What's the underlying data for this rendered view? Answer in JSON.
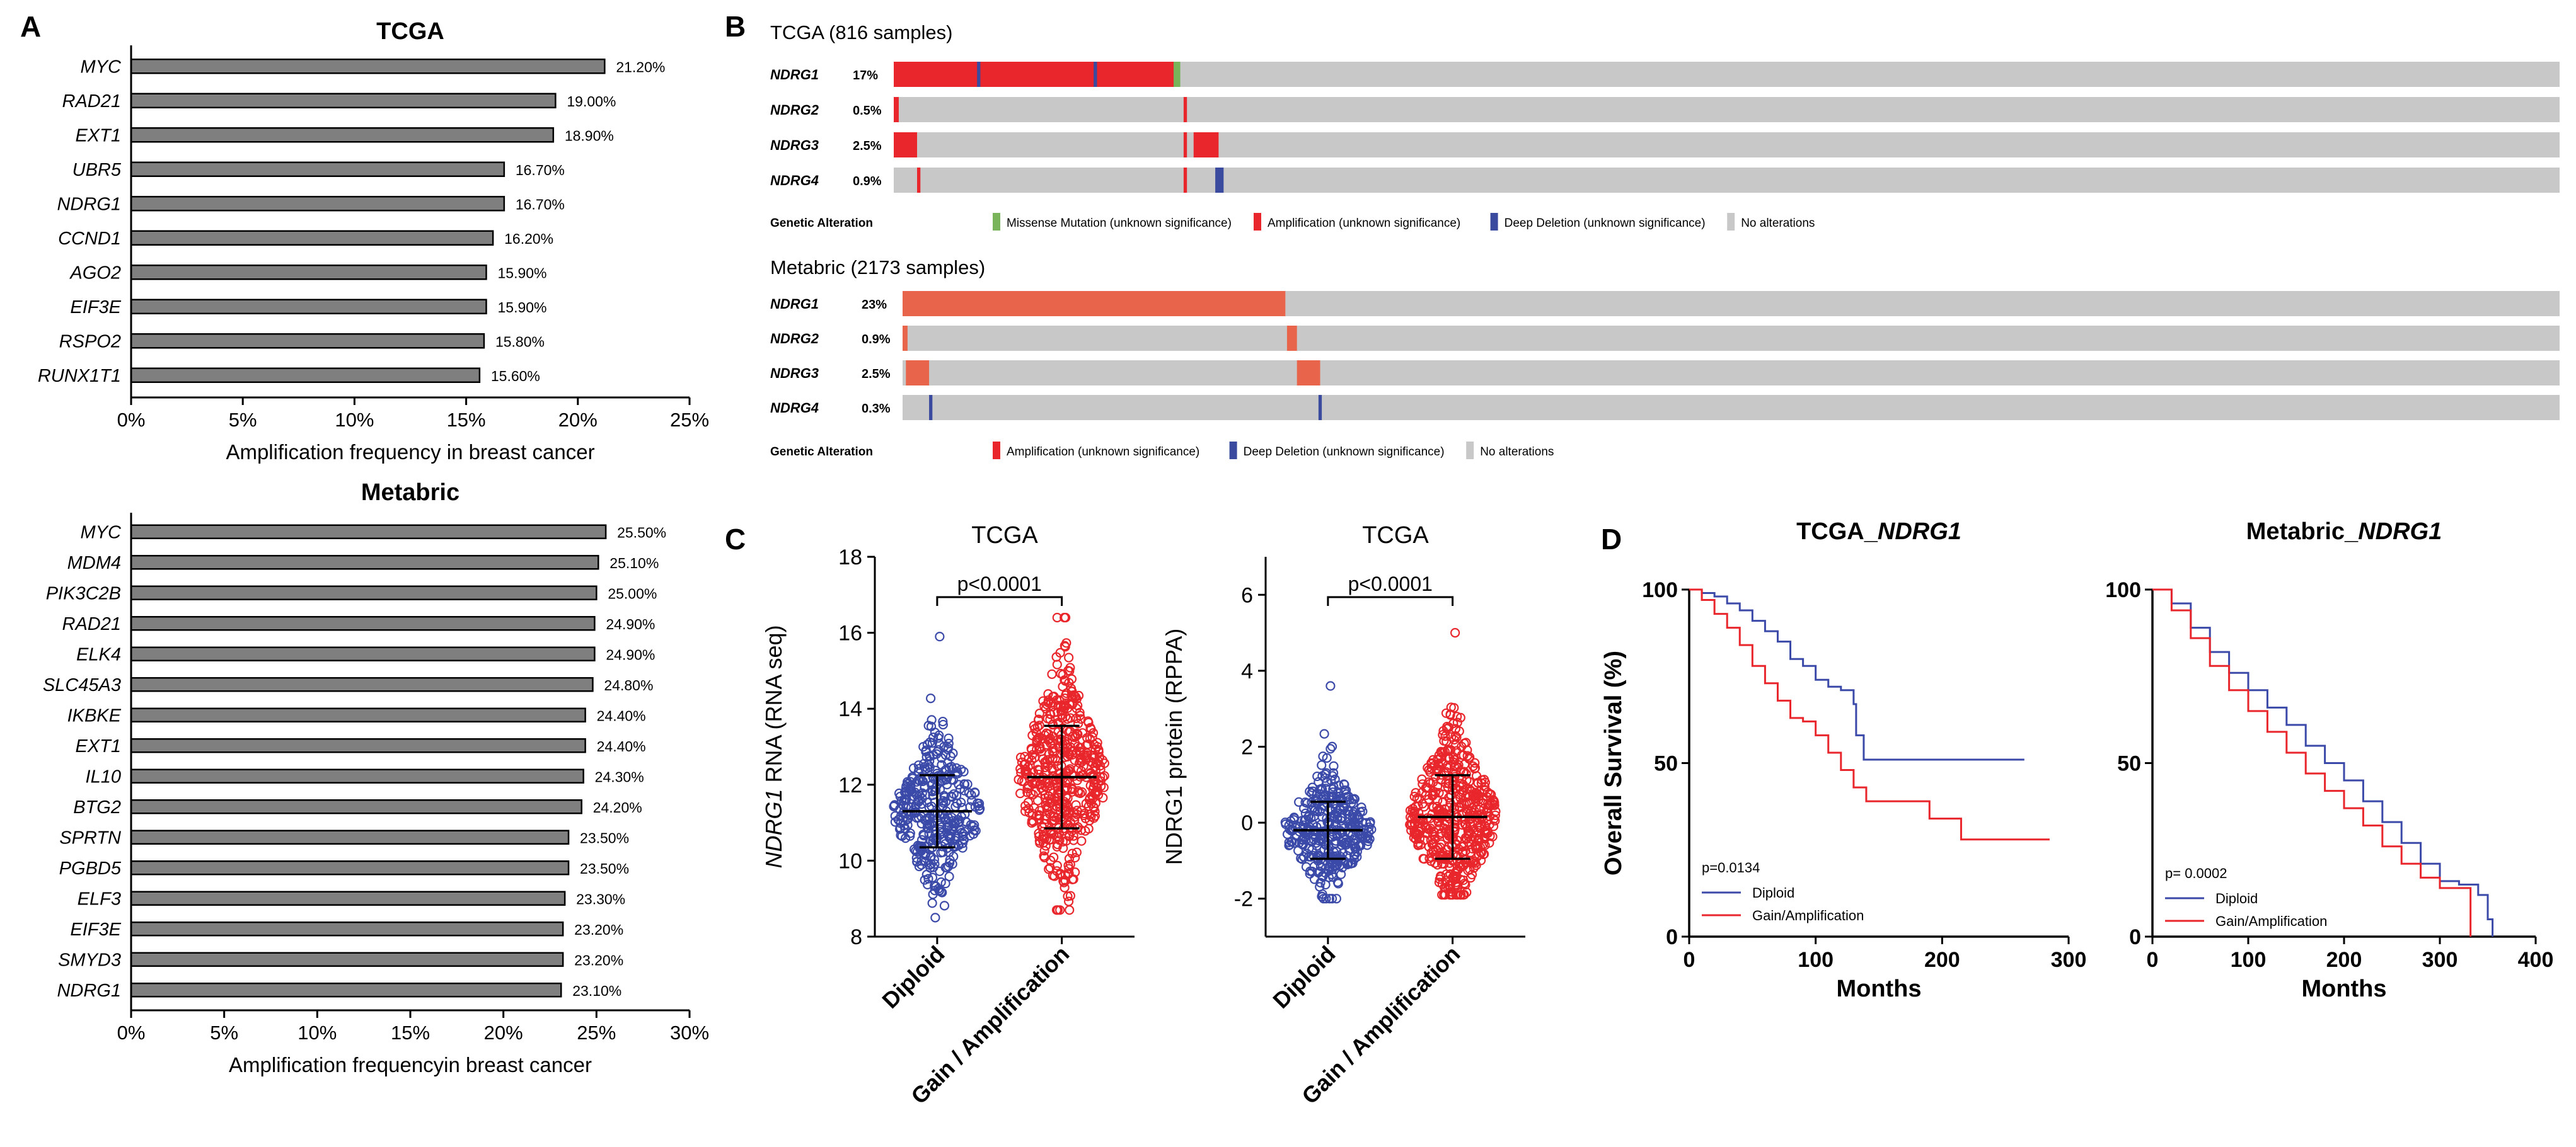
{
  "panel_letters": [
    "A",
    "B",
    "C",
    "D"
  ],
  "colors": {
    "bar": "#7f7f7f",
    "amp": "#e8262b",
    "amp_light": "#e8644a",
    "del": "#3a4a9e",
    "mis": "#79b45a",
    "noalt": "#c8c8c8",
    "dip": "#3b4aa8",
    "gain": "#e8262b"
  },
  "chart_data": [
    {
      "id": "a_tcga",
      "type": "bar",
      "orientation": "horizontal",
      "title": "TCGA",
      "categories": [
        "MYC",
        "RAD21",
        "EXT1",
        "UBR5",
        "NDRG1",
        "CCND1",
        "AGO2",
        "EIF3E",
        "RSPO2",
        "RUNX1T1"
      ],
      "values": [
        21.2,
        19.0,
        18.9,
        16.7,
        16.7,
        16.2,
        15.9,
        15.9,
        15.8,
        15.6
      ],
      "value_labels": [
        "21.20%",
        "19.00%",
        "18.90%",
        "16.70%",
        "16.70%",
        "16.20%",
        "15.90%",
        "15.90%",
        "15.80%",
        "15.60%"
      ],
      "xlim": [
        0,
        25
      ],
      "ticks": [
        "0%",
        "5%",
        "10%",
        "15%",
        "20%",
        "25%"
      ],
      "xlabel": "Amplification frequency in breast cancer"
    },
    {
      "id": "a_metabric",
      "type": "bar",
      "orientation": "horizontal",
      "title": "Metabric",
      "categories": [
        "MYC",
        "MDM4",
        "PIK3C2B",
        "RAD21",
        "ELK4",
        "SLC45A3",
        "IKBKE",
        "EXT1",
        "IL10",
        "BTG2",
        "SPRTN",
        "PGBD5",
        "ELF3",
        "EIF3E",
        "SMYD3",
        "NDRG1"
      ],
      "values": [
        25.5,
        25.1,
        25.0,
        24.9,
        24.9,
        24.8,
        24.4,
        24.4,
        24.3,
        24.2,
        23.5,
        23.5,
        23.3,
        23.2,
        23.2,
        23.1
      ],
      "value_labels": [
        "25.50%",
        "25.10%",
        "25.00%",
        "24.90%",
        "24.90%",
        "24.80%",
        "24.40%",
        "24.40%",
        "24.30%",
        "24.20%",
        "23.50%",
        "23.50%",
        "23.30%",
        "23.20%",
        "23.20%",
        "23.10%"
      ],
      "xlim": [
        0,
        30
      ],
      "ticks": [
        "0%",
        "5%",
        "10%",
        "15%",
        "20%",
        "25%",
        "30%"
      ],
      "xlabel": "Amplification frequencyin breast cancer"
    },
    {
      "id": "b_tcga",
      "type": "oncoprint",
      "title": "TCGA (816 samples)",
      "genes": [
        {
          "name": "NDRG1",
          "pct": "17%",
          "segments": [
            [
              0,
              0.17,
              "amp"
            ],
            [
              0.168,
              0.172,
              "mis"
            ],
            [
              0.05,
              0.052,
              "del"
            ],
            [
              0.12,
              0.122,
              "del"
            ]
          ]
        },
        {
          "name": "NDRG2",
          "pct": "0.5%",
          "segments": [
            [
              0,
              0.003,
              "amp"
            ],
            [
              0.174,
              0.176,
              "amp"
            ]
          ]
        },
        {
          "name": "NDRG3",
          "pct": "2.5%",
          "segments": [
            [
              0,
              0.014,
              "amp"
            ],
            [
              0.174,
              0.176,
              "amp"
            ],
            [
              0.18,
              0.195,
              "amp"
            ]
          ]
        },
        {
          "name": "NDRG4",
          "pct": "0.9%",
          "segments": [
            [
              0.014,
              0.016,
              "amp"
            ],
            [
              0.174,
              0.176,
              "amp"
            ],
            [
              0.193,
              0.198,
              "del"
            ]
          ]
        }
      ],
      "legend_title": "Genetic Alteration",
      "legend": [
        {
          "key": "mis",
          "label": "Missense Mutation (unknown significance)"
        },
        {
          "key": "amp",
          "label": "Amplification (unknown significance)"
        },
        {
          "key": "del",
          "label": "Deep Deletion (unknown significance)"
        },
        {
          "key": "noalt",
          "label": "No alterations"
        }
      ]
    },
    {
      "id": "b_metabric",
      "type": "oncoprint",
      "title": "Metabric (2173 samples)",
      "genes": [
        {
          "name": "NDRG1",
          "pct": "23%",
          "segments": [
            [
              0,
              0.231,
              "amp_light"
            ]
          ]
        },
        {
          "name": "NDRG2",
          "pct": "0.9%",
          "segments": [
            [
              0,
              0.003,
              "amp_light"
            ],
            [
              0.232,
              0.238,
              "amp_light"
            ]
          ]
        },
        {
          "name": "NDRG3",
          "pct": "2.5%",
          "segments": [
            [
              0.002,
              0.016,
              "amp_light"
            ],
            [
              0.238,
              0.252,
              "amp_light"
            ]
          ]
        },
        {
          "name": "NDRG4",
          "pct": "0.3%",
          "segments": [
            [
              0.016,
              0.018,
              "del"
            ],
            [
              0.251,
              0.253,
              "del"
            ]
          ]
        }
      ],
      "legend_title": "Genetic Alteration",
      "legend": [
        {
          "key": "amp",
          "label": "Amplification (unknown significance)"
        },
        {
          "key": "del",
          "label": "Deep Deletion (unknown significance)"
        },
        {
          "key": "noalt",
          "label": "No alterations"
        }
      ]
    },
    {
      "id": "c_rna",
      "type": "scatter",
      "subtype": "dot_plot",
      "title": "TCGA",
      "categories": [
        "Diploid",
        "Gain / Amplification"
      ],
      "ylabel_italic": "NDRG1",
      "ylabel_rest": " RNA (RNA seq)",
      "ylim": [
        8,
        18
      ],
      "yticks": [
        8,
        10,
        12,
        14,
        16,
        18
      ],
      "groups": [
        {
          "name": "Diploid",
          "mean": 11.3,
          "sd": 0.95,
          "min": 8.5,
          "max": 15.9,
          "n": 360,
          "color": "dip"
        },
        {
          "name": "Gain / Amplification",
          "mean": 12.2,
          "sd": 1.35,
          "min": 8.7,
          "max": 16.4,
          "n": 520,
          "color": "gain"
        }
      ],
      "pvalue": "p<0.0001"
    },
    {
      "id": "c_rppa",
      "type": "scatter",
      "subtype": "dot_plot",
      "title": "TCGA",
      "categories": [
        "Diploid",
        "Gain / Amplification"
      ],
      "ylabel_italic": "",
      "ylabel_rest": "NDRG1 protein (RPPA)",
      "ylim": [
        -3,
        7
      ],
      "yticks": [
        -2,
        0,
        2,
        4,
        6
      ],
      "groups": [
        {
          "name": "Diploid",
          "mean": -0.2,
          "sd": 0.75,
          "min": -2.0,
          "max": 3.6,
          "n": 360,
          "color": "dip"
        },
        {
          "name": "Gain / Amplification",
          "mean": 0.15,
          "sd": 1.1,
          "min": -1.9,
          "max": 5.0,
          "n": 520,
          "color": "gain"
        }
      ],
      "pvalue": "p<0.0001"
    },
    {
      "id": "d_tcga",
      "type": "line",
      "subtype": "kaplan_meier",
      "title_prefix": "TCGA_",
      "title_italic": "NDRG1",
      "xlabel": "Months",
      "ylabel": "Overall Survival (%)",
      "xlim": [
        0,
        300
      ],
      "xticks": [
        0,
        100,
        200,
        300
      ],
      "ylim": [
        0,
        100
      ],
      "yticks": [
        0,
        50,
        100
      ],
      "pvalue": "p=0.0134",
      "series": [
        {
          "name": "Diploid",
          "color": "dip",
          "points": [
            [
              0,
              100
            ],
            [
              10,
              99
            ],
            [
              20,
              98
            ],
            [
              30,
              96
            ],
            [
              40,
              94
            ],
            [
              50,
              91
            ],
            [
              60,
              88
            ],
            [
              70,
              85
            ],
            [
              80,
              80
            ],
            [
              90,
              78
            ],
            [
              100,
              74
            ],
            [
              110,
              72
            ],
            [
              120,
              71
            ],
            [
              130,
              67
            ],
            [
              132,
              58
            ],
            [
              138,
              51
            ],
            [
              265,
              51
            ]
          ]
        },
        {
          "name": "Gain/Amplification",
          "color": "gain",
          "points": [
            [
              0,
              100
            ],
            [
              10,
              97
            ],
            [
              20,
              93
            ],
            [
              30,
              89
            ],
            [
              40,
              84
            ],
            [
              50,
              78
            ],
            [
              60,
              73
            ],
            [
              70,
              68
            ],
            [
              80,
              63
            ],
            [
              90,
              62
            ],
            [
              100,
              58
            ],
            [
              110,
              53
            ],
            [
              120,
              48
            ],
            [
              130,
              43
            ],
            [
              140,
              39
            ],
            [
              180,
              39
            ],
            [
              190,
              34
            ],
            [
              215,
              28
            ],
            [
              285,
              28
            ]
          ]
        }
      ]
    },
    {
      "id": "d_metabric",
      "type": "line",
      "subtype": "kaplan_meier",
      "title_prefix": "Metabric_",
      "title_italic": "NDRG1",
      "xlabel": "Months",
      "ylabel": "",
      "xlim": [
        0,
        400
      ],
      "xticks": [
        0,
        100,
        200,
        300,
        400
      ],
      "ylim": [
        0,
        100
      ],
      "yticks": [
        0,
        50,
        100
      ],
      "pvalue": "p= 0.0002",
      "series": [
        {
          "name": "Diploid",
          "color": "dip",
          "points": [
            [
              0,
              100
            ],
            [
              20,
              96
            ],
            [
              40,
              89
            ],
            [
              60,
              82
            ],
            [
              80,
              76
            ],
            [
              100,
              71
            ],
            [
              120,
              66
            ],
            [
              140,
              61
            ],
            [
              160,
              55
            ],
            [
              180,
              50
            ],
            [
              200,
              45
            ],
            [
              220,
              39
            ],
            [
              240,
              33
            ],
            [
              260,
              27
            ],
            [
              280,
              21
            ],
            [
              300,
              16
            ],
            [
              320,
              15
            ],
            [
              340,
              12
            ],
            [
              350,
              5
            ],
            [
              355,
              0
            ]
          ]
        },
        {
          "name": "Gain/Amplification",
          "color": "gain",
          "points": [
            [
              0,
              100
            ],
            [
              20,
              94
            ],
            [
              40,
              86
            ],
            [
              60,
              78
            ],
            [
              80,
              71
            ],
            [
              100,
              65
            ],
            [
              120,
              59
            ],
            [
              140,
              53
            ],
            [
              160,
              47
            ],
            [
              180,
              42
            ],
            [
              200,
              37
            ],
            [
              220,
              32
            ],
            [
              240,
              26
            ],
            [
              260,
              21
            ],
            [
              280,
              17
            ],
            [
              300,
              14
            ],
            [
              320,
              14
            ],
            [
              330,
              14
            ],
            [
              332,
              0
            ]
          ]
        }
      ]
    }
  ]
}
